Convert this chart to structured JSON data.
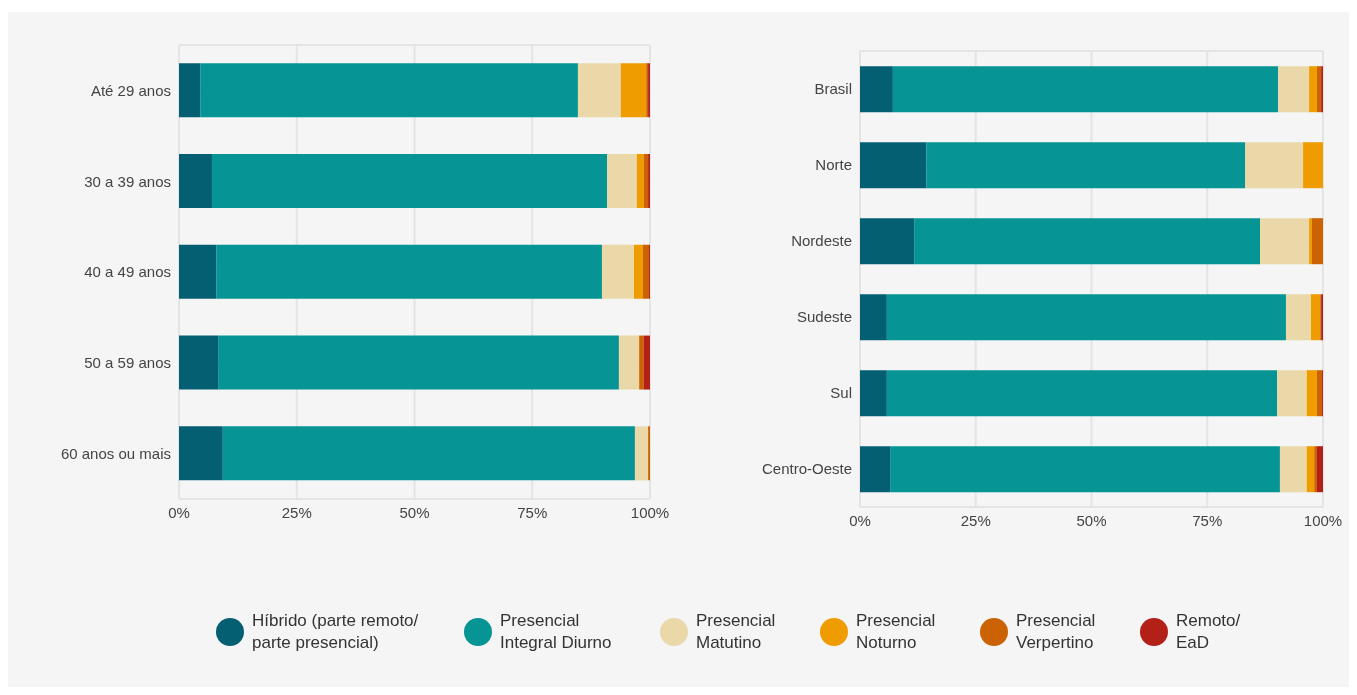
{
  "chart_data": [
    {
      "type": "bar",
      "orientation": "horizontal",
      "stacked": true,
      "grid": true,
      "legend": "bottom",
      "categories": [
        "Até 29 anos",
        "30 a 39 anos",
        "40 a 49 anos",
        "50 a 59 anos",
        "60 anos ou mais"
      ],
      "xlim": [
        0,
        100
      ],
      "xticks": [
        {
          "value": 0,
          "label": "0%"
        },
        {
          "value": 25,
          "label": "25%"
        },
        {
          "value": 50,
          "label": "50%"
        },
        {
          "value": 75,
          "label": "75%"
        },
        {
          "value": 100,
          "label": "100%"
        }
      ],
      "series": [
        {
          "name": "Híbrido (parte remoto/ parte presencial)",
          "color": "#045f73",
          "values": [
            4.5,
            7.0,
            7.9,
            8.3,
            9.3
          ]
        },
        {
          "name": "Presencial Integral Diurno",
          "color": "#079494",
          "values": [
            80.2,
            83.9,
            81.9,
            85.1,
            87.5
          ]
        },
        {
          "name": "Presencial Matutino",
          "color": "#ead8a8",
          "values": [
            9.1,
            6.3,
            6.8,
            4.3,
            2.8
          ]
        },
        {
          "name": "Presencial Noturno",
          "color": "#ee9c00",
          "values": [
            5.4,
            1.5,
            1.9,
            0,
            0
          ]
        },
        {
          "name": "Presencial Verpertino",
          "color": "#cb6305",
          "values": [
            0.4,
            0.9,
            1.3,
            1.0,
            0.4
          ]
        },
        {
          "name": "Remoto/ EaD",
          "color": "#b22017",
          "values": [
            0.4,
            0.4,
            0.2,
            1.3,
            0
          ]
        }
      ]
    },
    {
      "type": "bar",
      "orientation": "horizontal",
      "stacked": true,
      "grid": true,
      "categories": [
        "Brasil",
        "Norte",
        "Nordeste",
        "Sudeste",
        "Sul",
        "Centro-Oeste"
      ],
      "xlim": [
        0,
        100
      ],
      "xticks": [
        {
          "value": 0,
          "label": "0%"
        },
        {
          "value": 25,
          "label": "25%"
        },
        {
          "value": 50,
          "label": "50%"
        },
        {
          "value": 75,
          "label": "75%"
        },
        {
          "value": 100,
          "label": "100%"
        }
      ],
      "series": [
        {
          "color": "#045f73",
          "values": [
            7.1,
            14.3,
            11.7,
            5.8,
            5.8,
            6.5
          ]
        },
        {
          "color": "#079494",
          "values": [
            83.2,
            68.9,
            74.7,
            86.2,
            84.3,
            84.2
          ]
        },
        {
          "color": "#ead8a8",
          "values": [
            6.7,
            12.5,
            10.6,
            5.4,
            6.4,
            5.8
          ]
        },
        {
          "color": "#ee9c00",
          "values": [
            1.7,
            4.3,
            0.6,
            2.0,
            2.2,
            1.6
          ]
        },
        {
          "color": "#cb6305",
          "values": [
            0.9,
            0,
            2.4,
            0.2,
            1.1,
            0.6
          ]
        },
        {
          "color": "#b22017",
          "values": [
            0.4,
            0,
            0,
            0.4,
            0.2,
            1.3
          ]
        }
      ]
    }
  ]
}
